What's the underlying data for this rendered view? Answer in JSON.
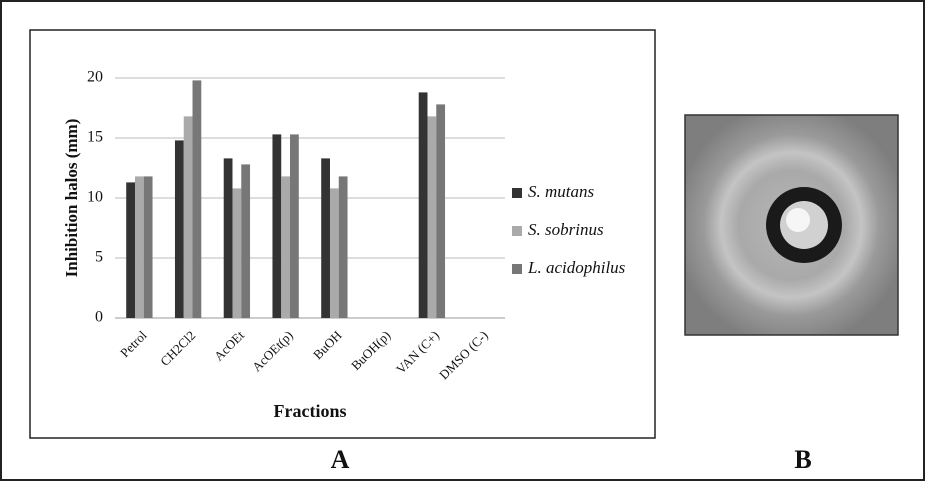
{
  "chart_data": {
    "type": "bar",
    "ylabel": "Inhibition halos (mm)",
    "xlabel": "Fractions",
    "categories": [
      "Petrol",
      "CH2Cl2",
      "AcOEt",
      "AcOEt(p)",
      "BuOH",
      "BuOH(p)",
      "VAN (C+)",
      "DMSO (C-)"
    ],
    "series": [
      {
        "name": "S. mutans",
        "color": "#333333",
        "values": [
          11.3,
          14.8,
          13.3,
          15.3,
          13.3,
          null,
          18.8,
          null
        ]
      },
      {
        "name": "S. sobrinus",
        "color": "#aaaaaa",
        "values": [
          11.8,
          16.8,
          10.8,
          11.8,
          10.8,
          null,
          16.8,
          null
        ]
      },
      {
        "name": "L. acidophilus",
        "color": "#777777",
        "values": [
          11.8,
          19.8,
          12.8,
          15.3,
          11.8,
          null,
          17.8,
          null
        ]
      }
    ],
    "ylim": [
      0,
      22
    ],
    "yticks": [
      0,
      5,
      10,
      15,
      20
    ],
    "grid": true
  },
  "panels": {
    "a": "A",
    "b": "B"
  }
}
